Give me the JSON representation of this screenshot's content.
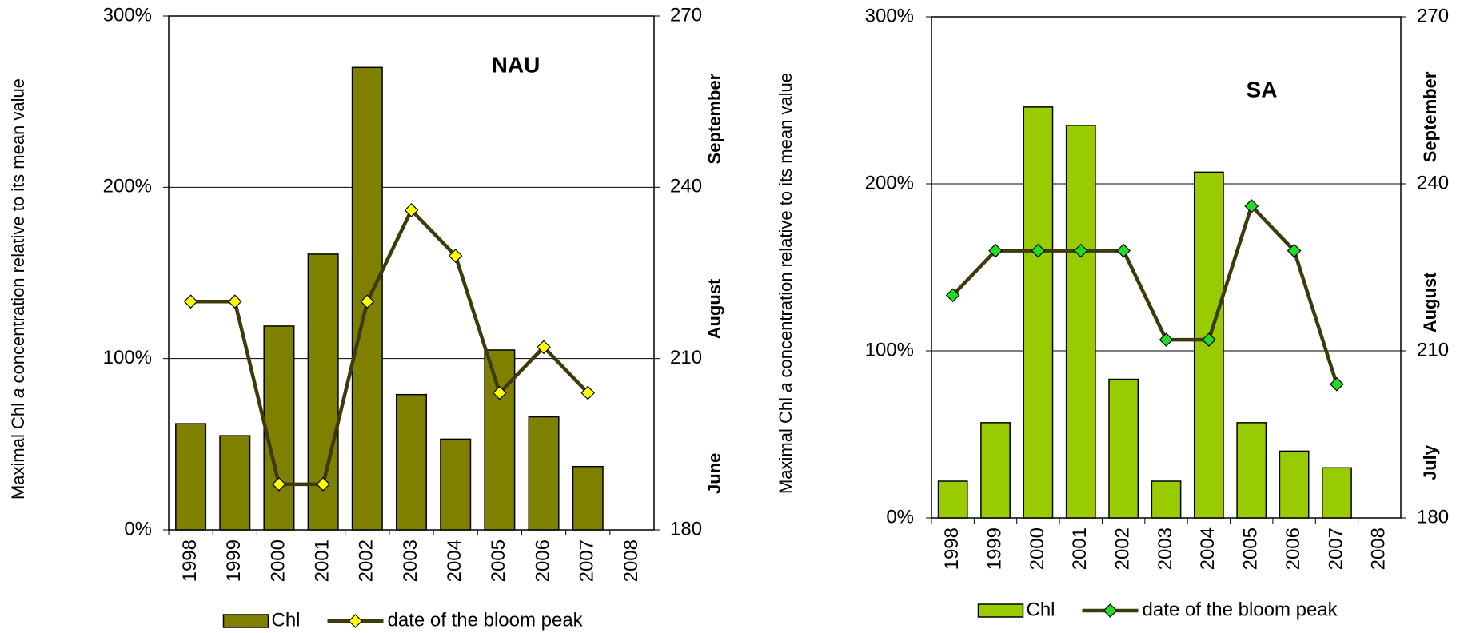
{
  "chart_data": [
    {
      "type": "bar",
      "annotation": "NAU",
      "y_label_parts": [
        "Maximal Chl ",
        "a",
        " concentration relative to its mean value"
      ],
      "categories": [
        "1998",
        "1999",
        "2000",
        "2001",
        "2002",
        "2003",
        "2004",
        "2005",
        "2006",
        "2007",
        "2008"
      ],
      "series": [
        {
          "name": "Chl",
          "type": "bar",
          "color": "#808000",
          "values": [
            62,
            55,
            119,
            161,
            270,
            79,
            53,
            105,
            66,
            37,
            null
          ]
        },
        {
          "name": "date of the bloom peak",
          "type": "line",
          "axis": "y2",
          "color": "#3d3a0c",
          "marker_color": "#ffff00",
          "values": [
            220,
            220,
            188,
            188,
            220,
            236,
            228,
            204,
            212,
            204,
            null
          ]
        }
      ],
      "ylim": [
        0,
        300
      ],
      "yticks": [
        {
          "value": 0,
          "label": "0%"
        },
        {
          "value": 100,
          "label": "100%"
        },
        {
          "value": 200,
          "label": "200%"
        },
        {
          "value": 300,
          "label": "300%"
        }
      ],
      "y2lim": [
        180,
        270
      ],
      "y2ticks": [
        180,
        210,
        240,
        270
      ],
      "y2_annotations": [
        "September",
        "August",
        "June"
      ],
      "grid": true
    },
    {
      "type": "bar",
      "annotation": "SA",
      "y_label_parts": [
        "Maximal Chl ",
        "a",
        " concentration relative to its mean value"
      ],
      "categories": [
        "1998",
        "1999",
        "2000",
        "2001",
        "2002",
        "2003",
        "2004",
        "2005",
        "2006",
        "2007",
        "2008"
      ],
      "series": [
        {
          "name": "Chl",
          "type": "bar",
          "color": "#99cc00",
          "values": [
            22,
            57,
            246,
            235,
            83,
            22,
            207,
            57,
            40,
            30,
            null
          ]
        },
        {
          "name": "date of the bloom peak",
          "type": "line",
          "axis": "y2",
          "color": "#3d3a0c",
          "marker_color": "#22dd22",
          "values": [
            220,
            228,
            228,
            228,
            228,
            212,
            212,
            236,
            228,
            204,
            null
          ]
        }
      ],
      "ylim": [
        0,
        300
      ],
      "yticks": [
        {
          "value": 0,
          "label": "0%"
        },
        {
          "value": 100,
          "label": "100%"
        },
        {
          "value": 200,
          "label": "200%"
        },
        {
          "value": 300,
          "label": "300%"
        }
      ],
      "y2lim": [
        180,
        270
      ],
      "y2ticks": [
        180,
        210,
        240,
        270
      ],
      "y2_annotations": [
        "September",
        "August",
        "July"
      ],
      "grid": true
    }
  ]
}
